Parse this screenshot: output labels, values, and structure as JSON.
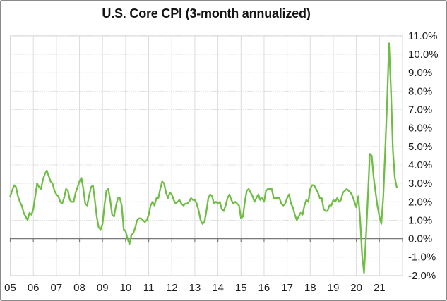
{
  "chart_data": {
    "type": "line",
    "title": "U.S. Core CPI (3-month annualized)",
    "xlabel": "",
    "ylabel": "",
    "ylim": [
      -2,
      11
    ],
    "y_step": 1,
    "grid": true,
    "legend_position": "none",
    "y_axis_side": "right",
    "line_color": "#6fbe44",
    "zero_axis_color": "#7a7a7a",
    "gridline_color": "#c6c6c6",
    "plot_border_color": "#d9d9d9",
    "y_tick_labels": [
      "11.0%",
      "10.0%",
      "9.0%",
      "8.0%",
      "7.0%",
      "6.0%",
      "5.0%",
      "4.0%",
      "3.0%",
      "2.0%",
      "1.0%",
      "0.0%",
      "-1.0%",
      "-2.0%"
    ],
    "x_tick_labels": [
      "05",
      "06",
      "07",
      "08",
      "09",
      "10",
      "11",
      "12",
      "13",
      "14",
      "15",
      "16",
      "17",
      "18",
      "19",
      "20",
      "21"
    ],
    "series": [
      {
        "name": "U.S. Core CPI (3-month annualized)",
        "frequency": "monthly",
        "start": "2005-01",
        "end": "2021-10",
        "unit": "percent",
        "values": [
          2.3,
          2.6,
          2.9,
          2.8,
          2.3,
          2.0,
          1.8,
          1.4,
          1.2,
          1.0,
          1.4,
          1.3,
          1.6,
          2.3,
          3.0,
          2.8,
          2.7,
          3.2,
          3.5,
          3.7,
          3.4,
          3.1,
          3.0,
          2.6,
          2.4,
          2.3,
          2.0,
          1.9,
          2.2,
          2.7,
          2.6,
          2.1,
          2.0,
          2.0,
          2.5,
          2.8,
          3.1,
          3.3,
          2.7,
          1.9,
          1.8,
          2.3,
          2.8,
          2.9,
          2.1,
          1.2,
          0.6,
          0.5,
          0.8,
          1.8,
          2.6,
          2.7,
          2.1,
          1.3,
          1.2,
          1.8,
          2.2,
          2.2,
          1.8,
          0.5,
          0.4,
          0.0,
          -0.3,
          0.2,
          0.3,
          0.6,
          1.0,
          1.1,
          1.1,
          1.0,
          0.9,
          1.0,
          1.3,
          1.8,
          2.0,
          1.8,
          2.2,
          2.2,
          2.7,
          3.1,
          3.0,
          2.5,
          2.2,
          2.5,
          2.4,
          2.1,
          1.9,
          2.0,
          2.1,
          1.9,
          1.8,
          1.9,
          1.9,
          2.0,
          2.2,
          2.1,
          2.1,
          1.9,
          1.5,
          1.0,
          0.8,
          0.9,
          1.5,
          2.2,
          2.4,
          2.3,
          1.9,
          2.0,
          1.9,
          2.0,
          1.6,
          1.5,
          1.8,
          2.2,
          2.4,
          2.1,
          1.9,
          2.0,
          1.9,
          1.8,
          1.1,
          1.2,
          2.0,
          2.6,
          2.7,
          2.5,
          2.3,
          2.0,
          2.2,
          2.4,
          2.1,
          2.2,
          2.0,
          2.6,
          2.7,
          2.7,
          2.7,
          2.2,
          2.2,
          2.2,
          2.2,
          1.9,
          1.8,
          1.9,
          2.2,
          2.4,
          1.9,
          1.7,
          1.3,
          1.0,
          1.2,
          1.4,
          1.3,
          1.8,
          2.1,
          2.0,
          2.7,
          2.9,
          2.9,
          2.7,
          2.5,
          2.2,
          2.2,
          1.6,
          1.5,
          1.5,
          1.8,
          1.8,
          2.1,
          2.0,
          2.2,
          2.0,
          2.1,
          2.5,
          2.6,
          2.7,
          2.6,
          2.5,
          2.3,
          2.0,
          1.7,
          2.3,
          1.0,
          -0.9,
          -1.85,
          0.1,
          2.3,
          4.6,
          4.5,
          3.3,
          2.5,
          1.75,
          1.2,
          0.8,
          2.3,
          4.8,
          7.4,
          10.6,
          8.0,
          4.8,
          3.3,
          2.8
        ]
      }
    ]
  }
}
